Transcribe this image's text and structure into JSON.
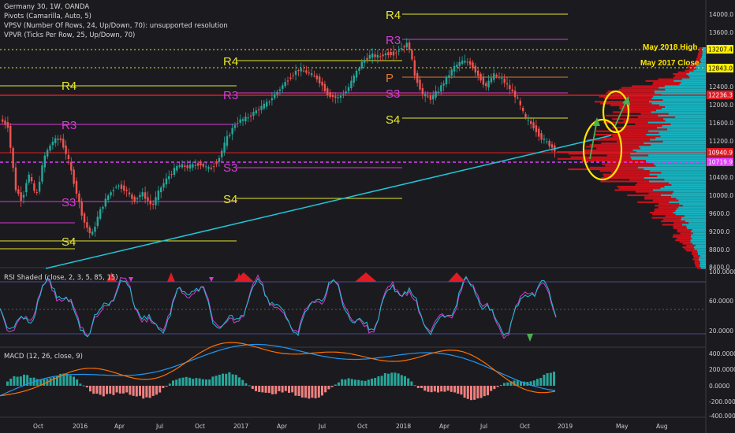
{
  "header": {
    "symbol": "Germany 30, 1W, OANDA",
    "indicators": [
      "Pivots (Camarilla, Auto, 5)",
      "VPSV (Number Of Rows, 24, Up/Down, 70): unsupported resolution",
      "VPVR (Ticks Per Row, 25, Up/Down, 70)"
    ]
  },
  "price_axis": {
    "ticks": [
      "14000.0",
      "13600.0",
      "12800.0",
      "12400.0",
      "12000.0",
      "11600.0",
      "11200.0",
      "10400.0",
      "10000.0",
      "9600.0",
      "9200.0",
      "8800.0",
      "8400.0"
    ],
    "markers": [
      {
        "label": "13207.4",
        "bg": "#fff200",
        "fg": "#000000"
      },
      {
        "label": "12843.0",
        "bg": "#fff200",
        "fg": "#000000"
      },
      {
        "label": "12236.3",
        "bg": "#e01b24",
        "fg": "#ffffff"
      },
      {
        "label": "10940.9",
        "bg": "#e01b24",
        "fg": "#ffffff"
      },
      {
        "label": "10719.9",
        "bg": "#e040fb",
        "fg": "#ffffff"
      }
    ]
  },
  "annotations": [
    {
      "text": "May 2018 High"
    },
    {
      "text": "May 2017 Close"
    }
  ],
  "pivot_labels": [
    "R4",
    "R3",
    "R4",
    "R3",
    "R4",
    "R3",
    "P",
    "S3",
    "S4",
    "S3",
    "S4",
    "S4",
    "S3"
  ],
  "rsi": {
    "title": "RSI Shaded (close, 2, 3, 5, 85, 15)",
    "ticks": [
      "100.0000",
      "60.0000",
      "20.0000"
    ]
  },
  "macd": {
    "title": "MACD (12, 26, close, 9)",
    "ticks": [
      "400.0000",
      "200.0000",
      "0.0000",
      "-200.0000",
      "-400.0000"
    ]
  },
  "time_axis": {
    "labels": [
      "Oct",
      "2016",
      "Apr",
      "Jul",
      "Oct",
      "2017",
      "Apr",
      "Jul",
      "Oct",
      "2018",
      "Apr",
      "Jul",
      "Oct",
      "2019",
      "May",
      "Aug"
    ]
  },
  "colors": {
    "background": "#1b1b1f",
    "up_candle": "#26a69a",
    "down_candle": "#ef5350",
    "trendline": "#22c4d6",
    "camarilla_r": "#e6e62e",
    "camarilla_s3": "#d63bd6",
    "vp_up": "#17c3d0",
    "vp_down": "#e0101a",
    "annotation": "#ffe600"
  }
}
